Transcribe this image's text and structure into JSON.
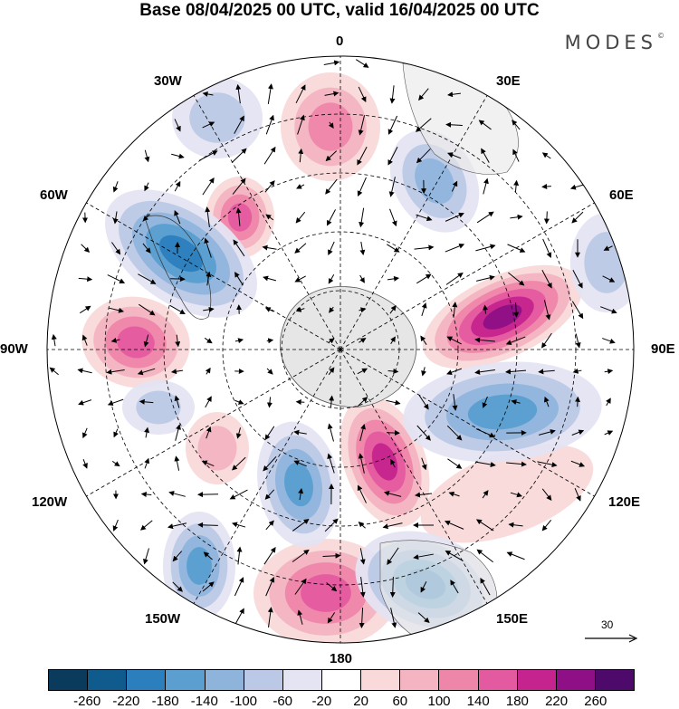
{
  "header": {
    "title": "Base 08/04/2025 00 UTC, valid 16/04/2025 00 UTC",
    "brand": "MODES"
  },
  "map": {
    "projection": "polar-stereographic-south",
    "longitude_labels": [
      "0",
      "30E",
      "60E",
      "90E",
      "120E",
      "150E",
      "180",
      "150W",
      "120W",
      "90W",
      "60W",
      "30W"
    ],
    "reference_vector": "30",
    "field": "anomaly",
    "anomaly_centres": [
      {
        "name": "positive-anomaly",
        "sign": "+",
        "max": 260
      },
      {
        "name": "positive-anomaly",
        "sign": "+",
        "max": 200
      },
      {
        "name": "positive-anomaly",
        "sign": "+",
        "max": 180
      },
      {
        "name": "negative-anomaly",
        "sign": "-",
        "min": -220
      },
      {
        "name": "negative-anomaly",
        "sign": "-",
        "min": -200
      },
      {
        "name": "negative-anomaly",
        "sign": "-",
        "min": -180
      },
      {
        "name": "negative-anomaly",
        "sign": "-",
        "min": -180
      }
    ]
  },
  "colorbar": {
    "ticks": [
      "-260",
      "-220",
      "-180",
      "-140",
      "-100",
      "-60",
      "-20",
      "20",
      "60",
      "100",
      "140",
      "180",
      "220",
      "260"
    ],
    "colors": [
      "#0b3b5c",
      "#0f5b8e",
      "#2b7fbd",
      "#5a9fd0",
      "#8fb4dc",
      "#bcc9e6",
      "#e4e4f2",
      "#ffffff",
      "#f9d9d9",
      "#f4b4c2",
      "#ee86aa",
      "#e45aa0",
      "#c5238e",
      "#8f0f86",
      "#4d0a6a"
    ]
  }
}
